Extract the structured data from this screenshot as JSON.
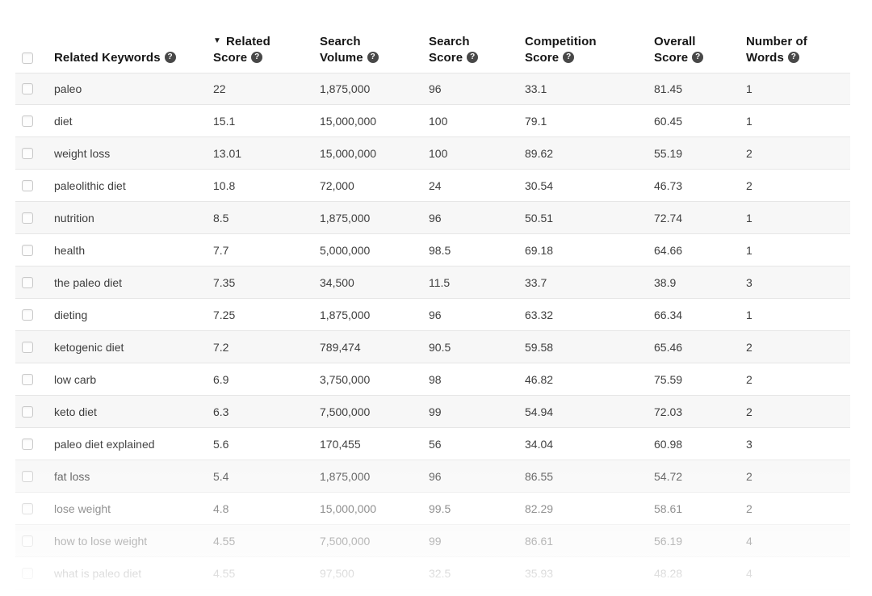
{
  "icons": {
    "help_glyph": "?",
    "sort_desc_glyph": "▼"
  },
  "colors": {
    "row_stripe": "#f7f7f7",
    "row_border": "#e6e6e6",
    "header_text": "#161616",
    "cell_text": "#3e3e3e",
    "help_badge_bg": "#484848",
    "checkbox_border": "#c9c9c9"
  },
  "table": {
    "header": {
      "columns": [
        {
          "id": "keyword",
          "lines": [
            "Related Keywords"
          ],
          "help": true,
          "sorted": null
        },
        {
          "id": "related_score",
          "lines": [
            "Related",
            "Score"
          ],
          "help": true,
          "sorted": "desc"
        },
        {
          "id": "search_volume",
          "lines": [
            "Search",
            "Volume"
          ],
          "help": true,
          "sorted": null
        },
        {
          "id": "search_score",
          "lines": [
            "Search",
            "Score"
          ],
          "help": true,
          "sorted": null
        },
        {
          "id": "competition_score",
          "lines": [
            "Competition",
            "Score"
          ],
          "help": true,
          "sorted": null
        },
        {
          "id": "overall_score",
          "lines": [
            "Overall",
            "Score"
          ],
          "help": true,
          "sorted": null
        },
        {
          "id": "num_words",
          "lines": [
            "Number of",
            "Words"
          ],
          "help": true,
          "sorted": null
        }
      ]
    },
    "rows": [
      {
        "keyword": "paleo",
        "related_score": "22",
        "search_volume": "1,875,000",
        "search_score": "96",
        "competition_score": "33.1",
        "overall_score": "81.45",
        "num_words": "1"
      },
      {
        "keyword": "diet",
        "related_score": "15.1",
        "search_volume": "15,000,000",
        "search_score": "100",
        "competition_score": "79.1",
        "overall_score": "60.45",
        "num_words": "1"
      },
      {
        "keyword": "weight loss",
        "related_score": "13.01",
        "search_volume": "15,000,000",
        "search_score": "100",
        "competition_score": "89.62",
        "overall_score": "55.19",
        "num_words": "2"
      },
      {
        "keyword": "paleolithic diet",
        "related_score": "10.8",
        "search_volume": "72,000",
        "search_score": "24",
        "competition_score": "30.54",
        "overall_score": "46.73",
        "num_words": "2"
      },
      {
        "keyword": "nutrition",
        "related_score": "8.5",
        "search_volume": "1,875,000",
        "search_score": "96",
        "competition_score": "50.51",
        "overall_score": "72.74",
        "num_words": "1"
      },
      {
        "keyword": "health",
        "related_score": "7.7",
        "search_volume": "5,000,000",
        "search_score": "98.5",
        "competition_score": "69.18",
        "overall_score": "64.66",
        "num_words": "1"
      },
      {
        "keyword": "the paleo diet",
        "related_score": "7.35",
        "search_volume": "34,500",
        "search_score": "11.5",
        "competition_score": "33.7",
        "overall_score": "38.9",
        "num_words": "3"
      },
      {
        "keyword": "dieting",
        "related_score": "7.25",
        "search_volume": "1,875,000",
        "search_score": "96",
        "competition_score": "63.32",
        "overall_score": "66.34",
        "num_words": "1"
      },
      {
        "keyword": "ketogenic diet",
        "related_score": "7.2",
        "search_volume": "789,474",
        "search_score": "90.5",
        "competition_score": "59.58",
        "overall_score": "65.46",
        "num_words": "2"
      },
      {
        "keyword": "low carb",
        "related_score": "6.9",
        "search_volume": "3,750,000",
        "search_score": "98",
        "competition_score": "46.82",
        "overall_score": "75.59",
        "num_words": "2"
      },
      {
        "keyword": "keto diet",
        "related_score": "6.3",
        "search_volume": "7,500,000",
        "search_score": "99",
        "competition_score": "54.94",
        "overall_score": "72.03",
        "num_words": "2"
      },
      {
        "keyword": "paleo diet explained",
        "related_score": "5.6",
        "search_volume": "170,455",
        "search_score": "56",
        "competition_score": "34.04",
        "overall_score": "60.98",
        "num_words": "3"
      },
      {
        "keyword": "fat loss",
        "related_score": "5.4",
        "search_volume": "1,875,000",
        "search_score": "96",
        "competition_score": "86.55",
        "overall_score": "54.72",
        "num_words": "2"
      },
      {
        "keyword": "lose weight",
        "related_score": "4.8",
        "search_volume": "15,000,000",
        "search_score": "99.5",
        "competition_score": "82.29",
        "overall_score": "58.61",
        "num_words": "2"
      },
      {
        "keyword": "how to lose weight",
        "related_score": "4.55",
        "search_volume": "7,500,000",
        "search_score": "99",
        "competition_score": "86.61",
        "overall_score": "56.19",
        "num_words": "4"
      },
      {
        "keyword": "what is paleo diet",
        "related_score": "4.55",
        "search_volume": "97,500",
        "search_score": "32.5",
        "competition_score": "35.93",
        "overall_score": "48.28",
        "num_words": "4"
      }
    ]
  }
}
